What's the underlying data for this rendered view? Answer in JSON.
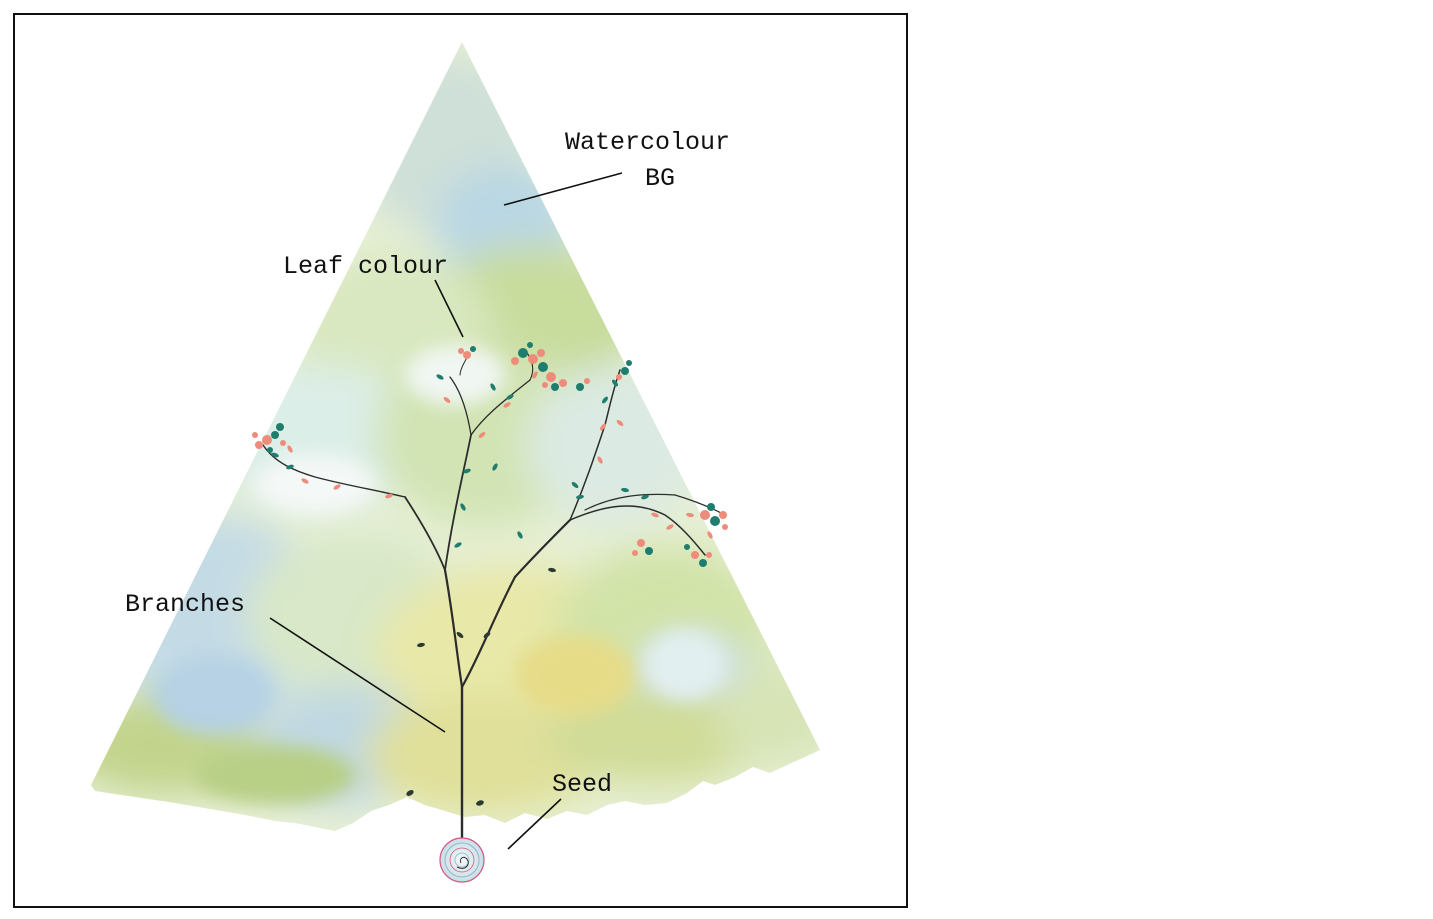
{
  "labels": {
    "watercolour_bg_line1": "Watercolour",
    "watercolour_bg_line2": "BG",
    "leaf_colour": "Leaf colour",
    "branches": "Branches",
    "seed": "Seed"
  },
  "colors": {
    "frame_border": "#111111",
    "wash_green": "#c9dc9a",
    "wash_blue": "#b8d7e6",
    "wash_yellow": "#e3e39a",
    "leaf_teal": "#1f7d6e",
    "leaf_salmon": "#ee8c7b",
    "branch": "#2c2c2c",
    "seed_pink": "#d45b82",
    "seed_blue": "#8fb8c9"
  }
}
